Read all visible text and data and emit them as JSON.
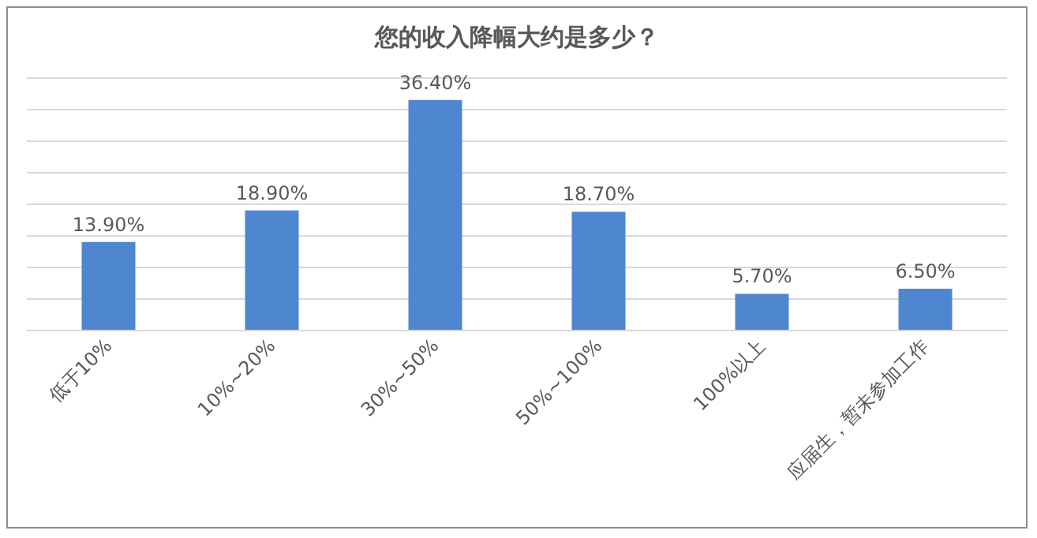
{
  "chart_data": {
    "type": "bar",
    "title": "您的收入降幅大约是多少？",
    "categories": [
      "低于10%",
      "10%~20%",
      "30%~50%",
      "50%~100%",
      "100%以上",
      "应届生，暂未参加工作"
    ],
    "values": [
      13.9,
      18.9,
      36.4,
      18.7,
      5.7,
      6.5
    ],
    "value_labels": [
      "13.90%",
      "18.90%",
      "36.40%",
      "18.70%",
      "5.70%",
      "6.50%"
    ],
    "color": "#4f86d0",
    "ylim": [
      0,
      40
    ],
    "yticks": [
      {
        "value": 0,
        "label": null
      },
      {
        "value": 5,
        "label": null
      },
      {
        "value": 10,
        "label": null
      },
      {
        "value": 15,
        "label": null
      },
      {
        "value": 20,
        "label": null
      },
      {
        "value": 25,
        "label": null
      },
      {
        "value": 30,
        "label": null
      },
      {
        "value": 35,
        "label": null
      },
      {
        "value": 40,
        "label": null
      }
    ],
    "grid": "y",
    "tick_labels": "x"
  }
}
